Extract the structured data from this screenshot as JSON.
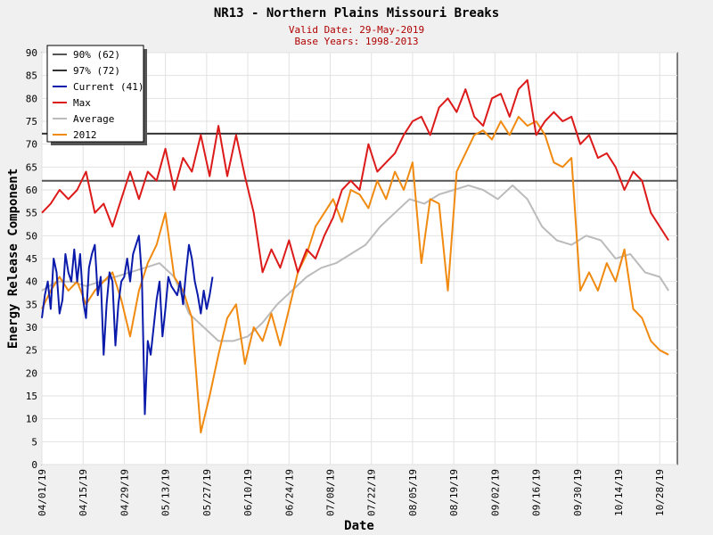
{
  "chart_data": {
    "type": "line",
    "title": "NR13 - Northern Plains Missouri Breaks",
    "subtitle_lines": [
      "Valid Date: 29-May-2019",
      "Base Years: 1998-2013"
    ],
    "xlabel": "Date",
    "ylabel": "Energy Release Component",
    "ylim": [
      0,
      90
    ],
    "y_ticks": [
      0,
      5,
      10,
      15,
      20,
      25,
      30,
      35,
      40,
      45,
      50,
      55,
      60,
      65,
      70,
      75,
      80,
      85,
      90
    ],
    "x_start": "2019-04-01",
    "x_end": "2019-11-03",
    "x_ticks": [
      "04/01/19",
      "04/15/19",
      "04/29/19",
      "05/13/19",
      "05/27/19",
      "06/10/19",
      "06/24/19",
      "07/08/19",
      "07/22/19",
      "08/05/19",
      "08/19/19",
      "09/02/19",
      "09/16/19",
      "09/30/19",
      "10/14/19",
      "10/28/19"
    ],
    "grid": true,
    "legend_position": "top-left",
    "reference_lines": [
      {
        "name": "90% (62)",
        "value": 62,
        "color": "#555555"
      },
      {
        "name": "97% (72)",
        "value": 72.3,
        "color": "#333333"
      }
    ],
    "series": [
      {
        "name": "Current (41)",
        "color": "#0a1aaa",
        "x": [
          0,
          1,
          2,
          3,
          4,
          5,
          6,
          7,
          8,
          9,
          10,
          11,
          12,
          13,
          14,
          15,
          16,
          17,
          18,
          19,
          20,
          21,
          22,
          23,
          24,
          25,
          26,
          27,
          28,
          29,
          30,
          31,
          32,
          33,
          34,
          35,
          36,
          37,
          38,
          39,
          40,
          41,
          42,
          43,
          44,
          45,
          46,
          47,
          48,
          49,
          50,
          51,
          52,
          53,
          54,
          55,
          56,
          57,
          58
        ],
        "y": [
          32,
          37,
          40,
          34,
          45,
          42,
          33,
          36,
          46,
          42,
          40,
          47,
          40,
          46,
          36,
          32,
          43,
          46,
          48,
          37,
          41,
          24,
          35,
          42,
          40,
          26,
          35,
          40,
          41,
          45,
          40,
          46,
          48,
          50,
          41,
          11,
          27,
          24,
          30,
          36,
          40,
          28,
          34,
          41,
          39,
          38,
          37,
          40,
          35,
          42,
          48,
          45,
          40,
          37,
          33,
          38,
          34,
          37,
          41
        ]
      },
      {
        "name": "Max",
        "color": "#dd1a1a",
        "x": [
          0,
          3,
          6,
          9,
          12,
          15,
          18,
          21,
          24,
          27,
          30,
          33,
          36,
          39,
          42,
          45,
          48,
          51,
          54,
          57,
          60,
          63,
          66,
          69,
          72,
          75,
          78,
          81,
          84,
          87,
          90,
          93,
          96,
          99,
          102,
          105,
          108,
          111,
          114,
          117,
          120,
          123,
          126,
          129,
          132,
          135,
          138,
          141,
          144,
          147,
          150,
          153,
          156,
          159,
          162,
          165,
          168,
          171,
          174,
          177,
          180,
          183,
          186,
          189,
          192,
          195,
          198,
          201,
          204,
          207,
          210,
          213
        ],
        "y": [
          55,
          57,
          60,
          58,
          60,
          64,
          55,
          57,
          52,
          58,
          64,
          58,
          64,
          62,
          69,
          60,
          67,
          64,
          72,
          63,
          74,
          63,
          72,
          63,
          55,
          42,
          47,
          43,
          49,
          42,
          47,
          45,
          50,
          54,
          60,
          62,
          60,
          70,
          64,
          66,
          68,
          72,
          75,
          76,
          72,
          78,
          80,
          77,
          82,
          76,
          74,
          80,
          81,
          76,
          82,
          84,
          72,
          75,
          77,
          75,
          76,
          70,
          72,
          67,
          68,
          65,
          60,
          64,
          62,
          55,
          52,
          49
        ]
      },
      {
        "name": "Average",
        "color": "#bbbbbb",
        "x": [
          0,
          5,
          10,
          15,
          20,
          25,
          30,
          35,
          40,
          45,
          50,
          55,
          60,
          65,
          70,
          75,
          80,
          85,
          90,
          95,
          100,
          105,
          110,
          115,
          120,
          125,
          130,
          135,
          140,
          145,
          150,
          155,
          160,
          165,
          170,
          175,
          180,
          185,
          190,
          195,
          200,
          205,
          210,
          213
        ],
        "y": [
          38,
          40,
          40,
          39,
          40,
          41,
          42,
          43,
          44,
          41,
          33,
          30,
          27,
          27,
          28,
          31,
          35,
          38,
          41,
          43,
          44,
          46,
          48,
          52,
          55,
          58,
          57,
          59,
          60,
          61,
          60,
          58,
          61,
          58,
          52,
          49,
          48,
          50,
          49,
          45,
          46,
          42,
          41,
          38
        ]
      },
      {
        "name": "2012",
        "color": "#f08a10",
        "x": [
          0,
          3,
          6,
          9,
          12,
          15,
          18,
          21,
          24,
          27,
          30,
          33,
          36,
          39,
          42,
          45,
          48,
          51,
          54,
          57,
          60,
          63,
          66,
          69,
          72,
          75,
          78,
          81,
          84,
          87,
          90,
          93,
          96,
          99,
          102,
          105,
          108,
          111,
          114,
          117,
          120,
          123,
          126,
          129,
          132,
          135,
          138,
          141,
          144,
          147,
          150,
          153,
          156,
          159,
          162,
          165,
          168,
          171,
          174,
          177,
          180,
          183,
          186,
          189,
          192,
          195,
          198,
          201,
          204,
          207,
          210,
          213
        ],
        "y": [
          34,
          38,
          41,
          38,
          40,
          35,
          38,
          40,
          42,
          36,
          28,
          38,
          44,
          48,
          55,
          41,
          38,
          32,
          7,
          15,
          24,
          32,
          35,
          22,
          30,
          27,
          33,
          26,
          34,
          42,
          46,
          52,
          55,
          58,
          53,
          60,
          59,
          56,
          62,
          58,
          64,
          60,
          66,
          44,
          58,
          57,
          38,
          64,
          68,
          72,
          73,
          71,
          75,
          72,
          76,
          74,
          75,
          72,
          66,
          65,
          67,
          38,
          42,
          38,
          44,
          40,
          47,
          34,
          32,
          27,
          25,
          24
        ]
      }
    ]
  }
}
